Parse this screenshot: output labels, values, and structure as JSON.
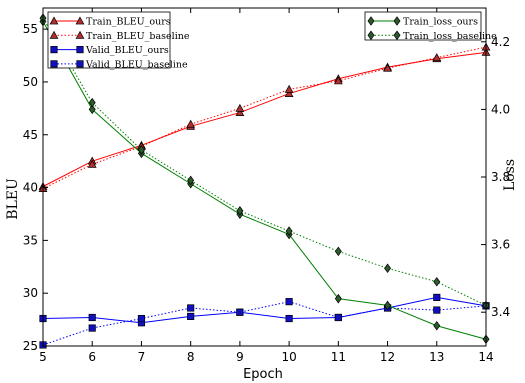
{
  "chart_data": {
    "type": "line",
    "x": [
      5,
      6,
      7,
      8,
      9,
      10,
      11,
      12,
      13,
      14
    ],
    "xlabel": "Epoch",
    "xlim": [
      5,
      14
    ],
    "xticks": [
      "5",
      "6",
      "7",
      "8",
      "9",
      "10",
      "11",
      "12",
      "13",
      "14"
    ],
    "y_left": {
      "label": "BLEU",
      "lim": [
        25,
        57
      ],
      "ticks": [
        "25",
        "30",
        "35",
        "40",
        "45",
        "50",
        "55"
      ]
    },
    "y_right": {
      "label": "Loss",
      "lim": [
        3.3,
        4.3
      ],
      "ticks": [
        "3.4",
        "3.6",
        "3.8",
        "4.0",
        "4.2"
      ]
    },
    "series": [
      {
        "name": "Train_BLEU_ours",
        "axis": "left",
        "color": "#ff0000",
        "marker": "triangle",
        "dash": false,
        "values": [
          40.1,
          42.5,
          44.0,
          45.8,
          47.1,
          48.9,
          50.3,
          51.4,
          52.2,
          52.8
        ]
      },
      {
        "name": "Train_BLEU_baseline",
        "axis": "left",
        "color": "#ff0000",
        "marker": "triangle",
        "dash": true,
        "values": [
          39.9,
          42.2,
          43.9,
          46.0,
          47.5,
          49.3,
          50.1,
          51.3,
          52.3,
          53.3
        ]
      },
      {
        "name": "Valid_BLEU_ours",
        "axis": "left",
        "color": "#0000ff",
        "marker": "square",
        "dash": false,
        "values": [
          27.6,
          27.7,
          27.2,
          27.8,
          28.2,
          27.6,
          27.7,
          28.6,
          29.6,
          28.8
        ]
      },
      {
        "name": "Valid_BLEU_baseline",
        "axis": "left",
        "color": "#0000ff",
        "marker": "square",
        "dash": true,
        "values": [
          25.1,
          26.7,
          27.6,
          28.6,
          28.2,
          29.2,
          27.7,
          28.6,
          28.4,
          28.8
        ]
      },
      {
        "name": "Train_loss_ours",
        "axis": "right",
        "color": "#008000",
        "marker": "diamond",
        "dash": false,
        "values": [
          4.26,
          4.0,
          3.87,
          3.78,
          3.69,
          3.63,
          3.44,
          3.42,
          3.36,
          3.32
        ]
      },
      {
        "name": "Train_loss_baseline",
        "axis": "right",
        "color": "#008000",
        "marker": "diamond",
        "dash": true,
        "values": [
          4.27,
          4.02,
          3.88,
          3.79,
          3.7,
          3.64,
          3.58,
          3.53,
          3.49,
          3.42
        ]
      }
    ],
    "legends": [
      {
        "position": "top-left",
        "items": [
          0,
          1,
          2,
          3
        ]
      },
      {
        "position": "top-right",
        "items": [
          4,
          5
        ]
      }
    ],
    "grid": false
  }
}
